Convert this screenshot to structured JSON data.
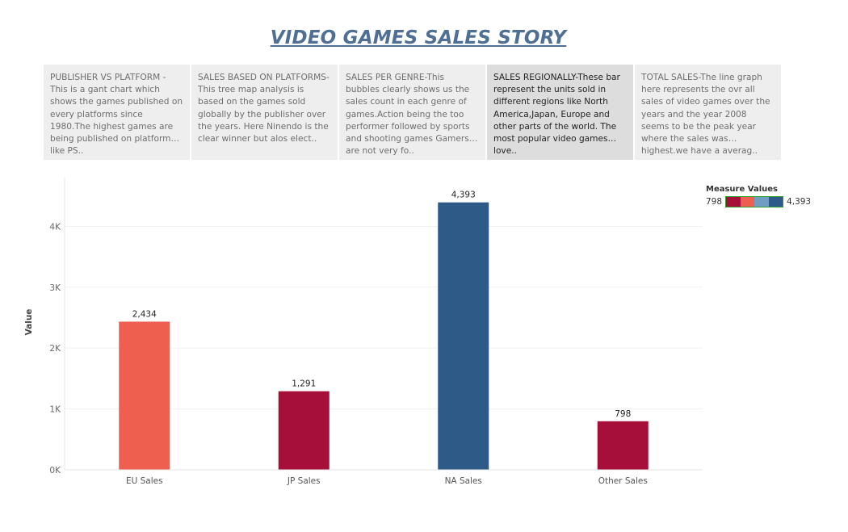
{
  "story": {
    "title": "VIDEO GAMES SALES STORY",
    "points": [
      {
        "text": "PUBLISHER VS PLATFORM - This is a gant chart which shows the games published on every platforms since 1980.The highest games are being published on platforms like PS..",
        "active": false
      },
      {
        "text": "SALES BASED ON PLATFORMS-This tree map analysis is based on the games sold globally by the publisher over the years. Here Ninendo is the clear winner but alos elect..",
        "active": false
      },
      {
        "text": "SALES PER GENRE-This bubbles clearly shows us the sales count in each genre of games.Action being the too performer followed by sports and shooting games Gamers are not very fo..",
        "active": false
      },
      {
        "text": "SALES REGIONALLY-These bar represent the units sold in different regions like North America,Japan, Europe and other parts of the world. The most popular video games love..",
        "active": true
      },
      {
        "text": "TOTAL SALES-The line graph here represents the ovr all sales of video games over the years and the year 2008 seems to be the peak year where the sales was highest.we have  a averag..",
        "active": false
      }
    ]
  },
  "legend": {
    "title": "Measure Values",
    "min_label": "798",
    "max_label": "4,393",
    "colors": [
      "#a50f3a",
      "#ef5f50",
      "#6f9ec0",
      "#2d5a87"
    ]
  },
  "chart_data": {
    "type": "bar",
    "categories": [
      "EU Sales",
      "JP Sales",
      "NA Sales",
      "Other Sales"
    ],
    "values": [
      2434,
      1291,
      4393,
      798
    ],
    "value_labels": [
      "2,434",
      "1,291",
      "4,393",
      "798"
    ],
    "colors": [
      "#ef5f50",
      "#a50f3a",
      "#2d5a87",
      "#a50f3a"
    ],
    "ylabel": "Value",
    "yticks": [
      0,
      1000,
      2000,
      3000,
      4000
    ],
    "ytick_labels": [
      "0K",
      "1K",
      "2K",
      "3K",
      "4K"
    ],
    "ylim": [
      0,
      4800
    ],
    "grid": true
  }
}
